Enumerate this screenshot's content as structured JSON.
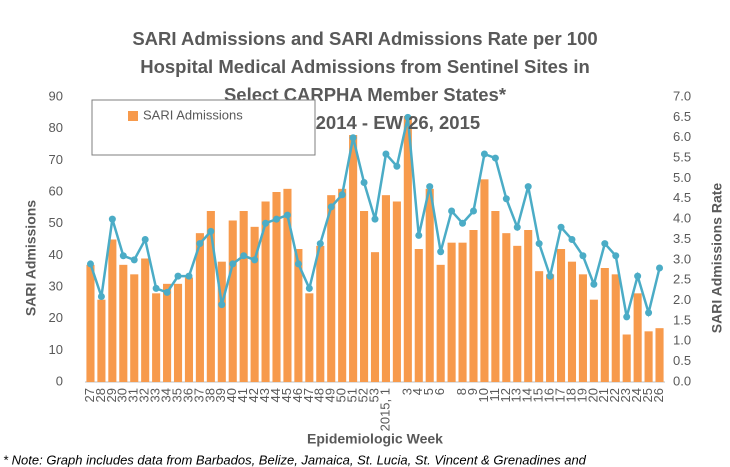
{
  "chart_data": {
    "type": "bar-line",
    "title": [
      "SARI Admissions and SARI Admissions Rate per 100",
      "Hospital Medical Admissions from Sentinel Sites in",
      "Select CARPHA Member States*",
      "EW 27, 2014 - EW 26, 2015"
    ],
    "x_label": "Epidemiologic Week",
    "y_label": "SARI Admissions",
    "y2_label": "SARI Admissions Rate",
    "note": "* Note: Graph includes data from Barbados, Belize, Jamaica,  St. Lucia, St. Vincent & Grenadines and",
    "categories": [
      "27",
      "28",
      "29",
      "30",
      "31",
      "32",
      "33",
      "34",
      "35",
      "36",
      "37",
      "38",
      "39",
      "40",
      "41",
      "42",
      "43",
      "44",
      "45",
      "46",
      "47",
      "48",
      "49",
      "50",
      "51",
      "52",
      "53",
      "2015, 1",
      null,
      "3",
      "4",
      "5",
      "6",
      null,
      "8",
      "9",
      "10",
      "11",
      "12",
      "13",
      "14",
      "15",
      "16",
      "17",
      "18",
      "19",
      "20",
      "21",
      "22",
      "23",
      "24",
      "25",
      "26"
    ],
    "series": [
      {
        "name": "SARI Admissions",
        "type": "bar",
        "color": "#f79a4c",
        "values": [
          37,
          26,
          45,
          37,
          34,
          39,
          28,
          31,
          31,
          33,
          47,
          54,
          38,
          51,
          54,
          49,
          57,
          60,
          61,
          42,
          28,
          43,
          59,
          61,
          78,
          54,
          41,
          59,
          57,
          84,
          42,
          61,
          37,
          44,
          44,
          48,
          64,
          54,
          47,
          43,
          48,
          35,
          34,
          42,
          38,
          34,
          26,
          36,
          34,
          15,
          28,
          16,
          17
        ]
      },
      {
        "type": "line",
        "axis": "y2",
        "color": "#4bacc6",
        "values": [
          2.9,
          2.1,
          4.0,
          3.1,
          3.0,
          3.5,
          2.3,
          2.2,
          2.6,
          2.6,
          3.4,
          3.7,
          1.9,
          2.9,
          3.1,
          3.0,
          3.9,
          4.0,
          4.1,
          2.9,
          2.3,
          3.4,
          4.3,
          4.6,
          6.0,
          4.9,
          4.0,
          5.6,
          5.3,
          6.5,
          3.6,
          4.8,
          3.2,
          4.2,
          3.9,
          4.2,
          5.6,
          5.5,
          4.5,
          3.8,
          4.8,
          3.4,
          2.6,
          3.8,
          3.5,
          3.1,
          2.4,
          3.4,
          3.1,
          1.6,
          2.6,
          1.7,
          2.8
        ]
      }
    ],
    "ylim": [
      0,
      90
    ],
    "yticks": [
      0,
      10,
      20,
      30,
      40,
      50,
      60,
      70,
      80,
      90
    ],
    "y2lim": [
      0,
      7
    ],
    "y2ticks": [
      {
        "value": 0,
        "label": "0.0"
      },
      {
        "value": 0.5,
        "label": "0.5"
      },
      {
        "value": 1,
        "label": "1.0"
      },
      {
        "value": 1.5,
        "label": "1.5"
      },
      {
        "value": 2,
        "label": "2.0"
      },
      {
        "value": 2.5,
        "label": "2.5"
      },
      {
        "value": 3,
        "label": "3.0"
      },
      {
        "value": 3.5,
        "label": "3.5"
      },
      {
        "value": 4,
        "label": "4.0"
      },
      {
        "value": 4.5,
        "label": "4.5"
      },
      {
        "value": 5,
        "label": "5.0"
      },
      {
        "value": 5.5,
        "label": "5.5"
      },
      {
        "value": 6,
        "label": "6.0"
      },
      {
        "value": 6.5,
        "label": "6.5"
      },
      {
        "value": 7,
        "label": "7.0"
      }
    ],
    "grid": false,
    "legend": "upper left"
  }
}
